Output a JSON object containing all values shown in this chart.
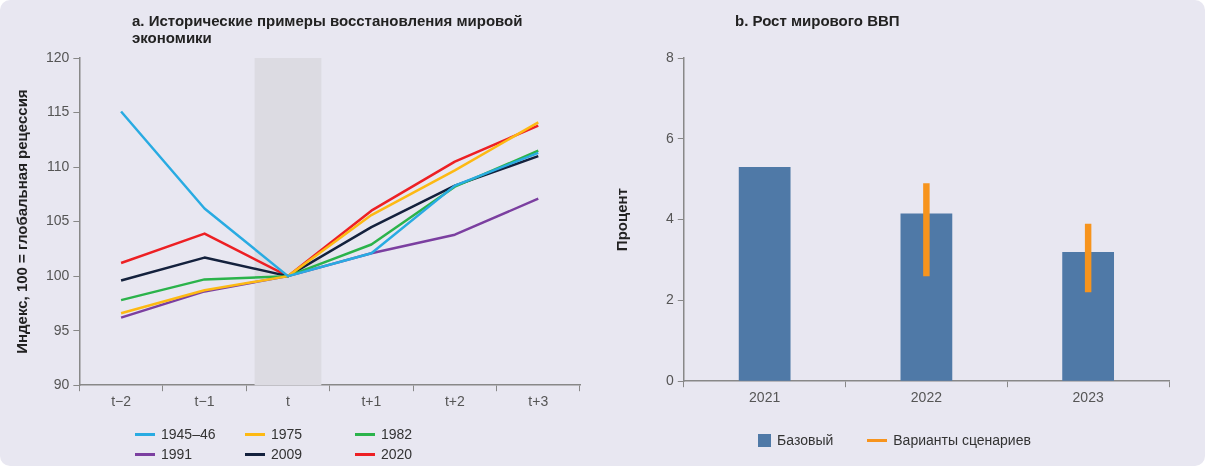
{
  "chart_data": [
    {
      "type": "line",
      "title": "a. Исторические примеры восстановления мировой экономики",
      "ylabel": "Индекс, 100 = глобальная рецессия",
      "categories": [
        "t−2",
        "t−1",
        "t",
        "t+1",
        "t+2",
        "t+3"
      ],
      "series": [
        {
          "name": "1945–46",
          "color": "#29abe2",
          "values": [
            115.1,
            106.2,
            100,
            102.1,
            108.3,
            111.3
          ]
        },
        {
          "name": "1975",
          "color": "#fdb913",
          "values": [
            96.6,
            98.7,
            100,
            105.6,
            109.7,
            114.1
          ]
        },
        {
          "name": "1982",
          "color": "#2bb34b",
          "values": [
            97.8,
            99.7,
            100,
            102.9,
            108.2,
            111.5
          ]
        },
        {
          "name": "1991",
          "color": "#7b3fa0",
          "values": [
            96.2,
            98.6,
            100,
            102.1,
            103.8,
            107.1
          ]
        },
        {
          "name": "2009",
          "color": "#14213d",
          "values": [
            99.6,
            101.7,
            100,
            104.5,
            108.3,
            111
          ]
        },
        {
          "name": "2020",
          "color": "#ed2024",
          "values": [
            101.2,
            103.9,
            100,
            106,
            110.5,
            113.8
          ]
        }
      ],
      "ylim": [
        90,
        120
      ],
      "yticks": [
        90,
        95,
        100,
        105,
        110,
        115,
        120
      ],
      "grid": false,
      "legend": "bottom",
      "marker": "none",
      "bands": [
        {
          "axis": "x",
          "from": "t",
          "to": "t",
          "color": "#dcdbe2"
        }
      ]
    },
    {
      "type": "bar",
      "title": "b. Рост мирового ВВП",
      "ylabel": "Процент",
      "categories": [
        "2021",
        "2022",
        "2023"
      ],
      "series": [
        {
          "name": "Базовый",
          "color": "#4f79a7",
          "values": [
            5.3,
            4.15,
            3.2
          ]
        },
        {
          "name": "Варианты сценариев",
          "color": "#f7941d",
          "values": [
            null,
            2.3,
            1.7
          ],
          "base": [
            null,
            2.6,
            2.2
          ]
        }
      ],
      "ylim": [
        0,
        8
      ],
      "yticks": [
        0,
        2,
        4,
        6,
        8
      ],
      "grid": false,
      "legend": "bottom"
    }
  ]
}
